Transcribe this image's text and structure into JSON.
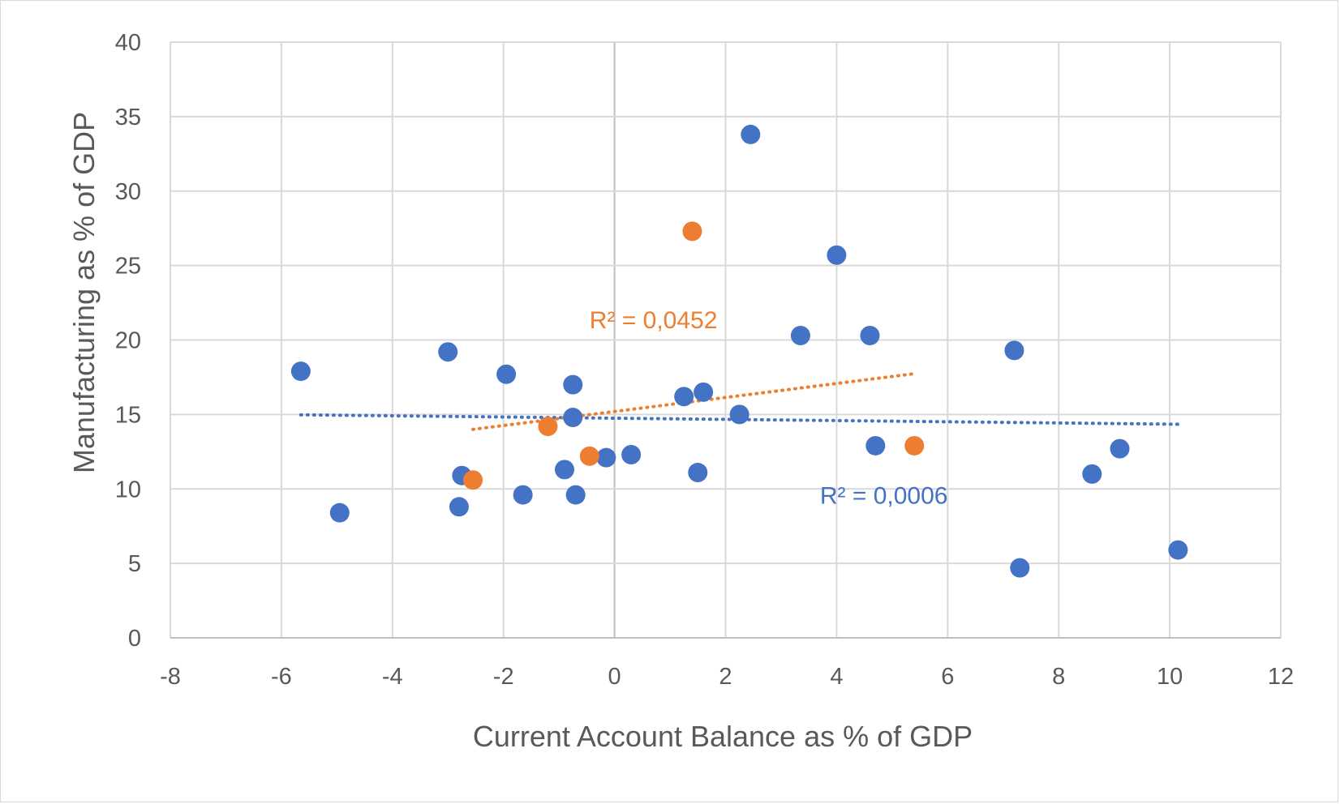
{
  "chart_data": {
    "type": "scatter",
    "title": "",
    "xlabel": "Current Account Balance as % of GDP",
    "ylabel": "Manufacturing as % of GDP",
    "xlim": [
      -8,
      12
    ],
    "ylim": [
      0,
      40
    ],
    "x_ticks": [
      -8,
      -6,
      -4,
      -2,
      0,
      2,
      4,
      6,
      8,
      10,
      12
    ],
    "y_ticks": [
      0,
      5,
      10,
      15,
      20,
      25,
      30,
      35,
      40
    ],
    "grid": true,
    "series": [
      {
        "color": "#4472c4",
        "points": [
          [
            -5.65,
            17.9
          ],
          [
            -4.95,
            8.4
          ],
          [
            -3.0,
            19.2
          ],
          [
            -2.75,
            10.9
          ],
          [
            -2.8,
            8.8
          ],
          [
            -1.95,
            17.7
          ],
          [
            -1.65,
            9.6
          ],
          [
            -0.75,
            17.0
          ],
          [
            -0.75,
            14.8
          ],
          [
            -0.9,
            11.3
          ],
          [
            -0.7,
            9.6
          ],
          [
            -0.15,
            12.1
          ],
          [
            0.3,
            12.3
          ],
          [
            1.25,
            16.2
          ],
          [
            1.6,
            16.5
          ],
          [
            1.5,
            11.1
          ],
          [
            2.25,
            15.0
          ],
          [
            2.45,
            33.8
          ],
          [
            3.35,
            20.3
          ],
          [
            4.0,
            25.7
          ],
          [
            4.6,
            20.3
          ],
          [
            4.7,
            12.9
          ],
          [
            7.2,
            19.3
          ],
          [
            7.3,
            4.7
          ],
          [
            8.6,
            11.0
          ],
          [
            9.1,
            12.7
          ],
          [
            10.15,
            5.9
          ]
        ],
        "trendline": {
          "x_range": [
            -5.65,
            10.15
          ],
          "slope": -0.04,
          "intercept": 14.75,
          "style": "dotted"
        },
        "r_squared_label": "R² = 0,0006",
        "r_squared_anchor": [
          3.7,
          9.0
        ]
      },
      {
        "color": "#ed7d31",
        "points": [
          [
            1.4,
            27.3
          ],
          [
            -1.2,
            14.2
          ],
          [
            -0.45,
            12.2
          ],
          [
            -2.55,
            10.6
          ],
          [
            5.4,
            12.9
          ]
        ],
        "trendline": {
          "x_range": [
            -2.55,
            5.4
          ],
          "slope": 0.47,
          "intercept": 15.2,
          "style": "dotted"
        },
        "r_squared_label": "R² = 0,0452",
        "r_squared_anchor": [
          -0.45,
          20.8
        ]
      }
    ]
  }
}
